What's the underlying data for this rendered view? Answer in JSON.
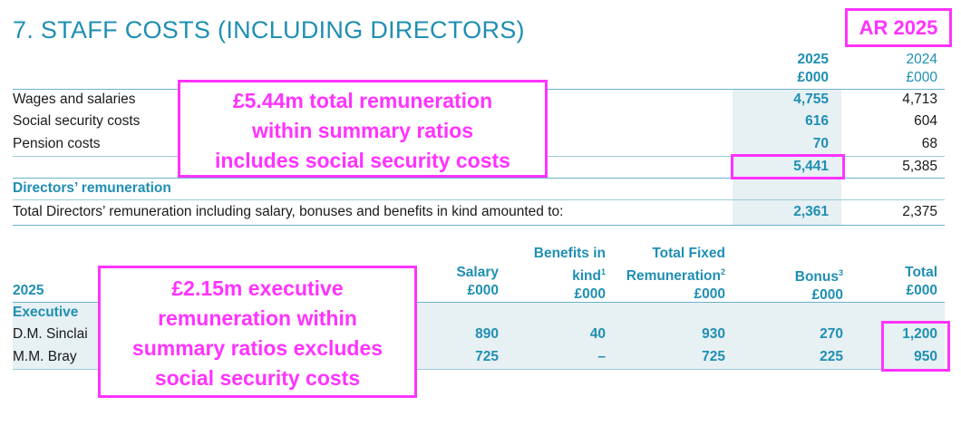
{
  "title": "7. STAFF COSTS (INCLUDING DIRECTORS)",
  "badge": "AR 2025",
  "costs_table": {
    "col_2025_year": "2025",
    "col_2025_unit": "£000",
    "col_2024_year": "2024",
    "col_2024_unit": "£000",
    "rows": [
      {
        "label": "Wages and salaries",
        "v2025": "4,755",
        "v2024": "4,713"
      },
      {
        "label": "Social security costs",
        "v2025": "616",
        "v2024": "604"
      },
      {
        "label": "Pension costs",
        "v2025": "70",
        "v2024": "68"
      }
    ],
    "total_2025": "5,441",
    "total_2024": "5,385"
  },
  "directors": {
    "heading": "Directors’ remuneration",
    "total_label": "Total Directors’ remuneration including salary, bonuses and benefits in kind amounted to:",
    "total_2025": "2,361",
    "total_2024": "2,375"
  },
  "exec_table": {
    "year": "2025",
    "headers": {
      "salary": [
        "Salary",
        "£000"
      ],
      "benefits": [
        "Benefits in",
        "kind",
        "1",
        "£000"
      ],
      "fixed": [
        "Total Fixed",
        "Remuneration",
        "2",
        "£000"
      ],
      "bonus": [
        "Bonus",
        "3",
        "£000"
      ],
      "total": [
        "Total",
        "£000"
      ]
    },
    "group": "Executive",
    "rows": [
      {
        "name": "D.M. Sinclai",
        "salary": "890",
        "benefits": "40",
        "fixed": "930",
        "bonus": "270",
        "total": "1,200"
      },
      {
        "name": "M.M. Bray",
        "salary": "725",
        "benefits": "–",
        "fixed": "725",
        "bonus": "225",
        "total": "950"
      }
    ]
  },
  "callouts": {
    "one": [
      "£5.44m total remuneration",
      "within summary ratios",
      "includes social security costs"
    ],
    "two": [
      "£2.15m executive",
      "remuneration within",
      "summary ratios excludes",
      "social security costs"
    ]
  }
}
